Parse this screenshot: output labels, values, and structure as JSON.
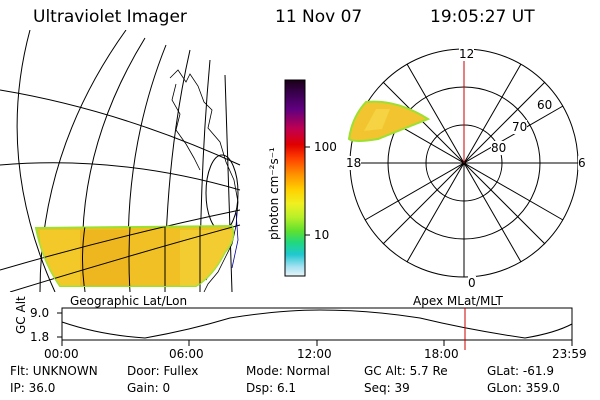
{
  "header": {
    "title": "Ultraviolet Imager",
    "date": "11 Nov 07",
    "time": "19:05:27 UT"
  },
  "left_panel": {
    "label": "Geographic Lat/Lon"
  },
  "colorbar": {
    "unit_label": "photon cm⁻²s⁻¹",
    "ticks": [
      "100",
      "10"
    ],
    "scale": "log",
    "colors": [
      "#1a0018",
      "#3a0050",
      "#600080",
      "#c00050",
      "#e00000",
      "#ff4000",
      "#ff9000",
      "#ffd000",
      "#f0f020",
      "#b8f028",
      "#60e030",
      "#20d880",
      "#20c8d0",
      "#a0e0f0",
      "#e8f4f8"
    ]
  },
  "polar_plot": {
    "label": "Apex MLat/MLT",
    "mlt_labels": {
      "top": "12",
      "bottom": "0",
      "left": "18",
      "right": "6"
    },
    "lat_labels": [
      "60",
      "70",
      "80"
    ]
  },
  "altitude_plot": {
    "ylabel": "GC Alt",
    "yticks": [
      "9.0",
      "1.8"
    ],
    "xticks": [
      "00:00",
      "06:00",
      "12:00",
      "18:00",
      "23:59"
    ],
    "marker_color": "#cc0000"
  },
  "info": {
    "flt": "Flt: UNKNOWN",
    "ip": "IP: 36.0",
    "door": "Door: Fullex",
    "gain": "Gain:   0",
    "mode": "Mode: Normal",
    "dsp": "Dsp:     6.1",
    "gcalt": "GC Alt: 5.7 Re",
    "seq": "Seq: 39",
    "glat": "GLat: -61.9",
    "glon": "GLon: 359.0"
  }
}
